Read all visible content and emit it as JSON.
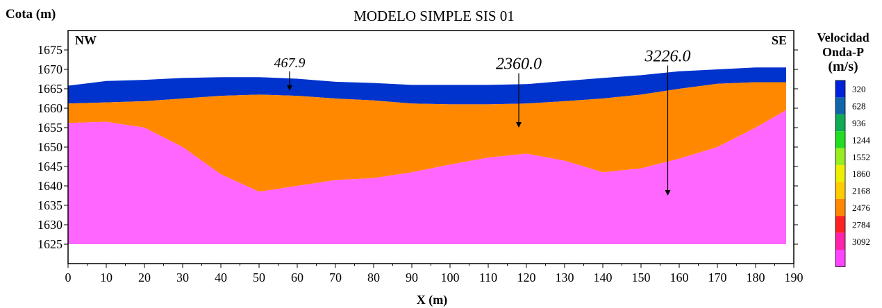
{
  "chart_data": {
    "type": "area",
    "title": "MODELO SIMPLE SIS 01",
    "ylabel": "Cota (m)",
    "xlabel": "X (m)",
    "corner_left": "NW",
    "corner_right": "SE",
    "xlim": [
      0,
      190
    ],
    "ylim": [
      1620,
      1680
    ],
    "x_ticks": [
      "0",
      "10",
      "20",
      "30",
      "40",
      "50",
      "60",
      "70",
      "80",
      "90",
      "100",
      "110",
      "120",
      "130",
      "140",
      "150",
      "160",
      "170",
      "180",
      "190"
    ],
    "y_ticks": [
      "1625",
      "1630",
      "1635",
      "1640",
      "1645",
      "1650",
      "1655",
      "1660",
      "1665",
      "1670",
      "1675"
    ],
    "grid": false,
    "series": [
      {
        "color": "#0033cc",
        "velocity_label": "467.9",
        "top": [
          [
            0,
            1665.8
          ],
          [
            10,
            1667.0
          ],
          [
            20,
            1667.3
          ],
          [
            30,
            1667.8
          ],
          [
            40,
            1668.0
          ],
          [
            50,
            1668.0
          ],
          [
            60,
            1667.6
          ],
          [
            70,
            1666.8
          ],
          [
            80,
            1666.5
          ],
          [
            90,
            1666.0
          ],
          [
            100,
            1666.0
          ],
          [
            110,
            1666.0
          ],
          [
            120,
            1666.2
          ],
          [
            130,
            1667.0
          ],
          [
            140,
            1667.8
          ],
          [
            150,
            1668.5
          ],
          [
            160,
            1669.5
          ],
          [
            170,
            1670.0
          ],
          [
            180,
            1670.5
          ],
          [
            188,
            1670.5
          ]
        ],
        "bottom": [
          [
            0,
            1661.2
          ],
          [
            10,
            1661.5
          ],
          [
            20,
            1661.8
          ],
          [
            30,
            1662.5
          ],
          [
            40,
            1663.2
          ],
          [
            50,
            1663.5
          ],
          [
            60,
            1663.2
          ],
          [
            70,
            1662.5
          ],
          [
            80,
            1662.0
          ],
          [
            90,
            1661.2
          ],
          [
            100,
            1661.0
          ],
          [
            110,
            1661.0
          ],
          [
            120,
            1661.2
          ],
          [
            130,
            1661.8
          ],
          [
            140,
            1662.5
          ],
          [
            150,
            1663.5
          ],
          [
            160,
            1665.0
          ],
          [
            170,
            1666.3
          ],
          [
            180,
            1666.7
          ],
          [
            188,
            1666.7
          ]
        ]
      },
      {
        "color": "#ff8800",
        "velocity_label": "2360.0",
        "top": [
          [
            0,
            1661.2
          ],
          [
            10,
            1661.5
          ],
          [
            20,
            1661.8
          ],
          [
            30,
            1662.5
          ],
          [
            40,
            1663.2
          ],
          [
            50,
            1663.5
          ],
          [
            60,
            1663.2
          ],
          [
            70,
            1662.5
          ],
          [
            80,
            1662.0
          ],
          [
            90,
            1661.2
          ],
          [
            100,
            1661.0
          ],
          [
            110,
            1661.0
          ],
          [
            120,
            1661.2
          ],
          [
            130,
            1661.8
          ],
          [
            140,
            1662.5
          ],
          [
            150,
            1663.5
          ],
          [
            160,
            1665.0
          ],
          [
            170,
            1666.3
          ],
          [
            180,
            1666.7
          ],
          [
            188,
            1666.7
          ]
        ],
        "bottom": [
          [
            0,
            1656.2
          ],
          [
            10,
            1656.5
          ],
          [
            20,
            1655.0
          ],
          [
            30,
            1650.0
          ],
          [
            40,
            1643.0
          ],
          [
            50,
            1638.5
          ],
          [
            60,
            1640.0
          ],
          [
            70,
            1641.5
          ],
          [
            80,
            1642.0
          ],
          [
            90,
            1643.5
          ],
          [
            100,
            1645.5
          ],
          [
            110,
            1647.3
          ],
          [
            120,
            1648.3
          ],
          [
            130,
            1646.5
          ],
          [
            140,
            1643.5
          ],
          [
            150,
            1644.5
          ],
          [
            160,
            1647.0
          ],
          [
            170,
            1650.0
          ],
          [
            180,
            1655.0
          ],
          [
            188,
            1659.5
          ]
        ]
      },
      {
        "color": "#ff66ff",
        "velocity_label": "3226.0",
        "top": [
          [
            0,
            1656.2
          ],
          [
            10,
            1656.5
          ],
          [
            20,
            1655.0
          ],
          [
            30,
            1650.0
          ],
          [
            40,
            1643.0
          ],
          [
            50,
            1638.5
          ],
          [
            60,
            1640.0
          ],
          [
            70,
            1641.5
          ],
          [
            80,
            1642.0
          ],
          [
            90,
            1643.5
          ],
          [
            100,
            1645.5
          ],
          [
            110,
            1647.3
          ],
          [
            120,
            1648.3
          ],
          [
            130,
            1646.5
          ],
          [
            140,
            1643.5
          ],
          [
            150,
            1644.5
          ],
          [
            160,
            1647.0
          ],
          [
            170,
            1650.0
          ],
          [
            180,
            1655.0
          ],
          [
            188,
            1659.5
          ]
        ],
        "bottom": [
          [
            0,
            1625
          ],
          [
            188,
            1625
          ]
        ]
      }
    ],
    "annotations": [
      {
        "text": "467.9",
        "x": 58,
        "y_from": 1669.5,
        "y_to": 1664.5
      },
      {
        "text": "2360.0",
        "x": 118,
        "y_from": 1669.0,
        "y_to": 1655.0
      },
      {
        "text": "3226.0",
        "x": 157,
        "y_from": 1671.0,
        "y_to": 1637.5
      }
    ],
    "legend": {
      "title_lines": [
        "Velocidad",
        "Onda-P",
        "(m/s)"
      ],
      "position": "right",
      "items": [
        {
          "label": "320",
          "color": "#0022dd"
        },
        {
          "label": "628",
          "color": "#1166aa"
        },
        {
          "label": "936",
          "color": "#11aa55"
        },
        {
          "label": "1244",
          "color": "#22dd22"
        },
        {
          "label": "1552",
          "color": "#99ee22"
        },
        {
          "label": "1860",
          "color": "#eeee00"
        },
        {
          "label": "2168",
          "color": "#ffcc00"
        },
        {
          "label": "2476",
          "color": "#ff8800"
        },
        {
          "label": "2784",
          "color": "#ff2222"
        },
        {
          "label": "3092",
          "color": "#ff22aa"
        },
        {
          "label": "",
          "color": "#ff44ff"
        }
      ]
    }
  }
}
